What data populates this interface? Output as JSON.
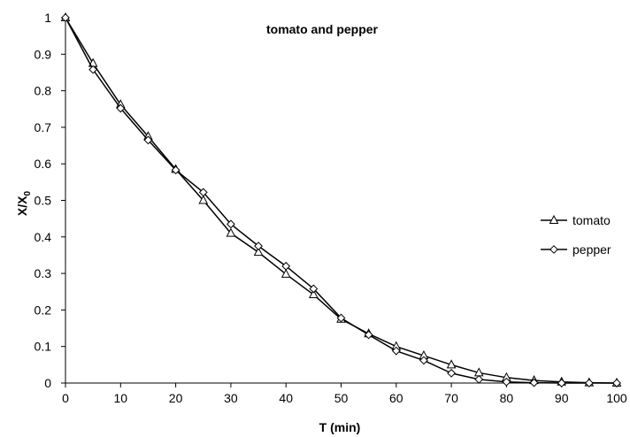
{
  "chart_data": {
    "type": "line",
    "title": "tomato and pepper",
    "xlabel": "T (min)",
    "ylabel_main": "X/X",
    "ylabel_sub": "0",
    "xlim": [
      0,
      100
    ],
    "ylim": [
      0,
      1
    ],
    "x_ticks": [
      "0",
      "10",
      "20",
      "30",
      "40",
      "50",
      "60",
      "70",
      "80",
      "90",
      "100"
    ],
    "y_ticks": [
      "0",
      "0.1",
      "0.2",
      "0.3",
      "0.4",
      "0.5",
      "0.6",
      "0.7",
      "0.8",
      "0.9",
      "1"
    ],
    "grid": false,
    "legend_position": "right",
    "x": [
      0,
      5,
      10,
      15,
      20,
      25,
      30,
      35,
      40,
      45,
      50,
      55,
      60,
      65,
      70,
      75,
      80,
      85,
      90,
      95,
      100
    ],
    "series": [
      {
        "name": "tomato",
        "marker": "triangle",
        "color": "#000000",
        "values": [
          1.0,
          0.875,
          0.762,
          0.675,
          0.585,
          0.5,
          0.41,
          0.358,
          0.298,
          0.242,
          0.175,
          0.135,
          0.1,
          0.075,
          0.05,
          0.028,
          0.015,
          0.007,
          0.003,
          0.001,
          0.0
        ]
      },
      {
        "name": "pepper",
        "marker": "diamond",
        "color": "#000000",
        "values": [
          1.0,
          0.858,
          0.752,
          0.665,
          0.583,
          0.522,
          0.435,
          0.375,
          0.32,
          0.258,
          0.178,
          0.132,
          0.088,
          0.062,
          0.027,
          0.01,
          0.003,
          0.001,
          0.0,
          0.0,
          0.0
        ]
      }
    ]
  }
}
